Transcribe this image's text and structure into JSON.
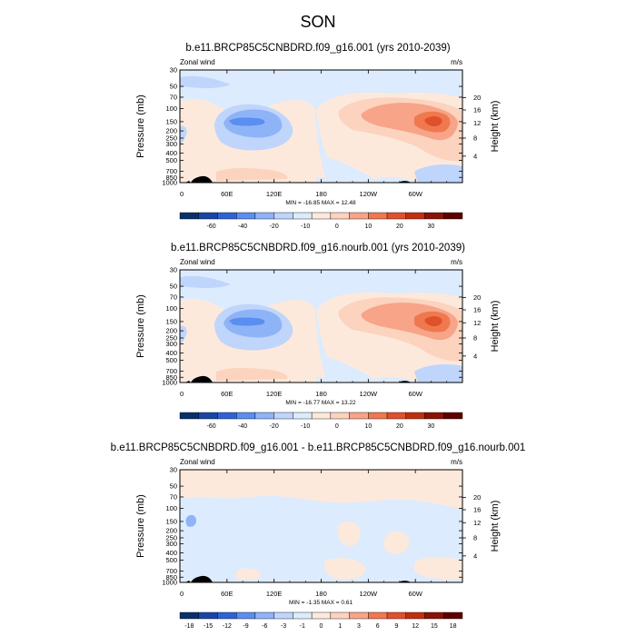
{
  "page_title": "SON",
  "pressure_ticks": [
    "30",
    "50",
    "70",
    "100",
    "150",
    "200",
    "250",
    "300",
    "400",
    "500",
    "700",
    "850",
    "1000"
  ],
  "height_ticks": [
    "20",
    "16",
    "12",
    "8",
    "4"
  ],
  "colors": {
    "palette_main": [
      "#08306b",
      "#1a45a8",
      "#2f62d6",
      "#5a8ef0",
      "#8fb3f7",
      "#bfd5fb",
      "#dcebfd",
      "#fde9dc",
      "#fcd3be",
      "#f7a488",
      "#f0784f",
      "#e0502b",
      "#c02f0f",
      "#8a1306",
      "#5c0000"
    ],
    "palette_diff": [
      "#08306b",
      "#1a45a8",
      "#2f62d6",
      "#5a8ef0",
      "#8fb3f7",
      "#bfd5fb",
      "#dcebfd",
      "#fde9dc",
      "#fcd3be",
      "#f7a488",
      "#f0784f",
      "#e0502b",
      "#c02f0f",
      "#8a1306",
      "#5c0000"
    ]
  },
  "chart_data": [
    {
      "type": "heatmap",
      "title": "b.e11.BRCP85C5CNBDRD.f09_g16.001 (yrs 2010-2039)",
      "left_label": "Zonal wind",
      "right_label": "m/s",
      "ylabel": "Pressure (mb)",
      "y2label": "Height (km)",
      "x_tick_labels": [
        "0",
        "60E",
        "120E",
        "180",
        "120W",
        "60W"
      ],
      "xlim": [
        0,
        360
      ],
      "stats": "MIN = -16.85  MAX =  12.48",
      "colorbar_labels": [
        "-60",
        "-40",
        "-20",
        "-10",
        "0",
        "10",
        "20",
        "30"
      ],
      "features": [
        {
          "lon": 102,
          "p": 150,
          "value": -16.85
        },
        {
          "lon": 325,
          "p": 150,
          "value": 12.48
        }
      ]
    },
    {
      "type": "heatmap",
      "title": "b.e11.BRCP85C5CNBDRD.f09_g16.nourb.001 (yrs 2010-2039)",
      "left_label": "Zonal wind",
      "right_label": "m/s",
      "ylabel": "Pressure (mb)",
      "y2label": "Height (km)",
      "x_tick_labels": [
        "0",
        "60E",
        "120E",
        "180",
        "120W",
        "60W"
      ],
      "xlim": [
        0,
        360
      ],
      "stats": "MIN = -16.77  MAX =  13.22",
      "colorbar_labels": [
        "-60",
        "-40",
        "-20",
        "-10",
        "0",
        "10",
        "20",
        "30"
      ],
      "features": [
        {
          "lon": 100,
          "p": 150,
          "value": -16.77
        },
        {
          "lon": 323,
          "p": 150,
          "value": 13.22
        }
      ]
    },
    {
      "type": "heatmap",
      "title": "b.e11.BRCP85C5CNBDRD.f09_g16.001 - b.e11.BRCP85C5CNBDRD.f09_g16.nourb.001",
      "left_label": "Zonal wind",
      "right_label": "m/s",
      "ylabel": "Pressure (mb)",
      "y2label": "Height (km)",
      "x_tick_labels": [
        "0",
        "60E",
        "120E",
        "180",
        "120W",
        "60W"
      ],
      "xlim": [
        0,
        360
      ],
      "stats": "MIN = -1.35  MAX =  0.61",
      "colorbar_labels": [
        "-18",
        "-15",
        "-12",
        "-9",
        "-6",
        "-3",
        "-1",
        "0",
        "1",
        "3",
        "6",
        "9",
        "12",
        "15",
        "18"
      ],
      "features": []
    }
  ]
}
